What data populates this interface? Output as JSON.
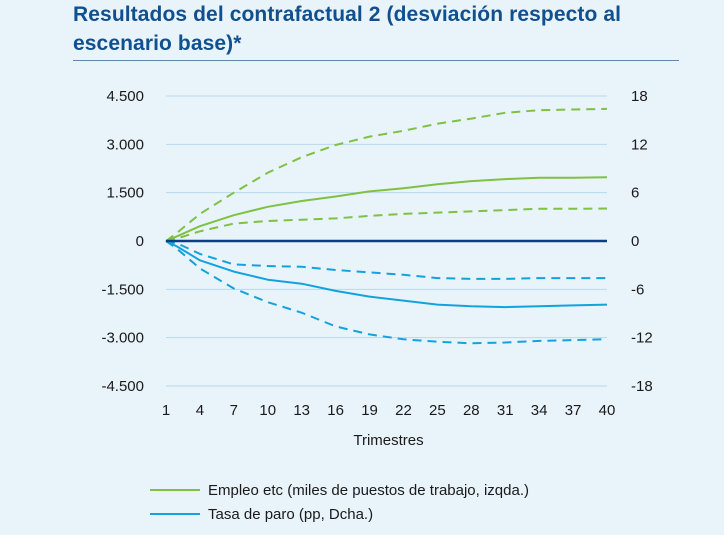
{
  "title": "Resultados del contrafactual 2 (desviación respecto al escenario base)*",
  "colors": {
    "title": "#10508f",
    "grid": "#b8d9ee",
    "zero_line": "#0d3d86",
    "empleo": "#7ec143",
    "paro": "#12a3dd"
  },
  "chart_data": {
    "type": "line",
    "title": "Resultados del contrafactual 2 (desviación respecto al escenario base)*",
    "xlabel": "Trimestres",
    "ylabel": "",
    "x_ticks": [
      "1",
      "4",
      "7",
      "10",
      "13",
      "16",
      "19",
      "22",
      "25",
      "28",
      "31",
      "34",
      "37",
      "40"
    ],
    "xlim": [
      1,
      40
    ],
    "y_left": {
      "ylim": [
        -4500,
        4500
      ],
      "ticks": [
        4500,
        3000,
        1500,
        0,
        -1500,
        -3000,
        -4500
      ],
      "tick_labels": [
        "4.500",
        "3.000",
        "1.500",
        "0",
        "-1.500",
        "-3.000",
        "-4.500"
      ]
    },
    "y_right": {
      "ylim": [
        -18,
        18
      ],
      "ticks": [
        18,
        12,
        6,
        0,
        -6,
        -12,
        -18
      ],
      "tick_labels": [
        "18",
        "12",
        "6",
        "0",
        "-6",
        "-12",
        "-18"
      ]
    },
    "grid": true,
    "legend_position": "bottom",
    "series": [
      {
        "name": "Empleo etc (miles de puestos de trabajo, izqda.)",
        "axis": "left",
        "style": "solid",
        "color": "#7ec143",
        "x": [
          1,
          2,
          4,
          7,
          10,
          13,
          16,
          19,
          22,
          25,
          28,
          31,
          34,
          37,
          40
        ],
        "y": [
          0,
          150,
          460,
          800,
          1060,
          1240,
          1380,
          1540,
          1640,
          1760,
          1860,
          1920,
          1960,
          1960,
          1980
        ]
      },
      {
        "name": "",
        "axis": "left",
        "style": "dashed",
        "color": "#7ec143",
        "x": [
          1,
          2,
          4,
          7,
          10,
          13,
          16,
          19,
          22,
          25,
          28,
          31,
          34,
          37,
          40
        ],
        "y": [
          0,
          260,
          840,
          1500,
          2120,
          2600,
          2980,
          3240,
          3420,
          3640,
          3800,
          3980,
          4060,
          4080,
          4100
        ]
      },
      {
        "name": "",
        "axis": "left",
        "style": "dashed",
        "color": "#7ec143",
        "x": [
          1,
          2,
          4,
          7,
          10,
          13,
          16,
          19,
          22,
          25,
          28,
          31,
          34,
          37,
          40
        ],
        "y": [
          0,
          80,
          300,
          540,
          620,
          660,
          700,
          780,
          840,
          880,
          920,
          960,
          1000,
          1000,
          1010
        ]
      },
      {
        "name": "Tasa de paro (pp, Dcha.)",
        "axis": "right",
        "style": "solid",
        "color": "#12a3dd",
        "x": [
          1,
          2,
          4,
          7,
          10,
          13,
          16,
          19,
          22,
          25,
          28,
          31,
          34,
          37,
          40
        ],
        "y": [
          0,
          -0.7,
          -2.4,
          -3.8,
          -4.8,
          -5.3,
          -6.2,
          -6.9,
          -7.4,
          -7.9,
          -8.1,
          -8.2,
          -8.1,
          -8.0,
          -7.9
        ]
      },
      {
        "name": "",
        "axis": "right",
        "style": "dashed",
        "color": "#12a3dd",
        "x": [
          1,
          2,
          4,
          7,
          10,
          13,
          16,
          19,
          22,
          25,
          28,
          31,
          34,
          37,
          40
        ],
        "y": [
          0,
          -0.3,
          -1.6,
          -2.9,
          -3.1,
          -3.2,
          -3.6,
          -3.9,
          -4.2,
          -4.6,
          -4.7,
          -4.7,
          -4.6,
          -4.6,
          -4.6
        ]
      },
      {
        "name": "",
        "axis": "right",
        "style": "dashed",
        "color": "#12a3dd",
        "x": [
          1,
          2,
          4,
          7,
          10,
          13,
          16,
          19,
          22,
          25,
          28,
          31,
          34,
          37,
          40
        ],
        "y": [
          0,
          -1.0,
          -3.4,
          -5.9,
          -7.6,
          -8.9,
          -10.6,
          -11.6,
          -12.2,
          -12.5,
          -12.7,
          -12.6,
          -12.4,
          -12.3,
          -12.2
        ]
      }
    ]
  },
  "legend": [
    {
      "label": "Empleo etc (miles de puestos de trabajo, izqda.)",
      "color": "#7ec143"
    },
    {
      "label": "Tasa de paro (pp, Dcha.)",
      "color": "#12a3dd"
    }
  ]
}
